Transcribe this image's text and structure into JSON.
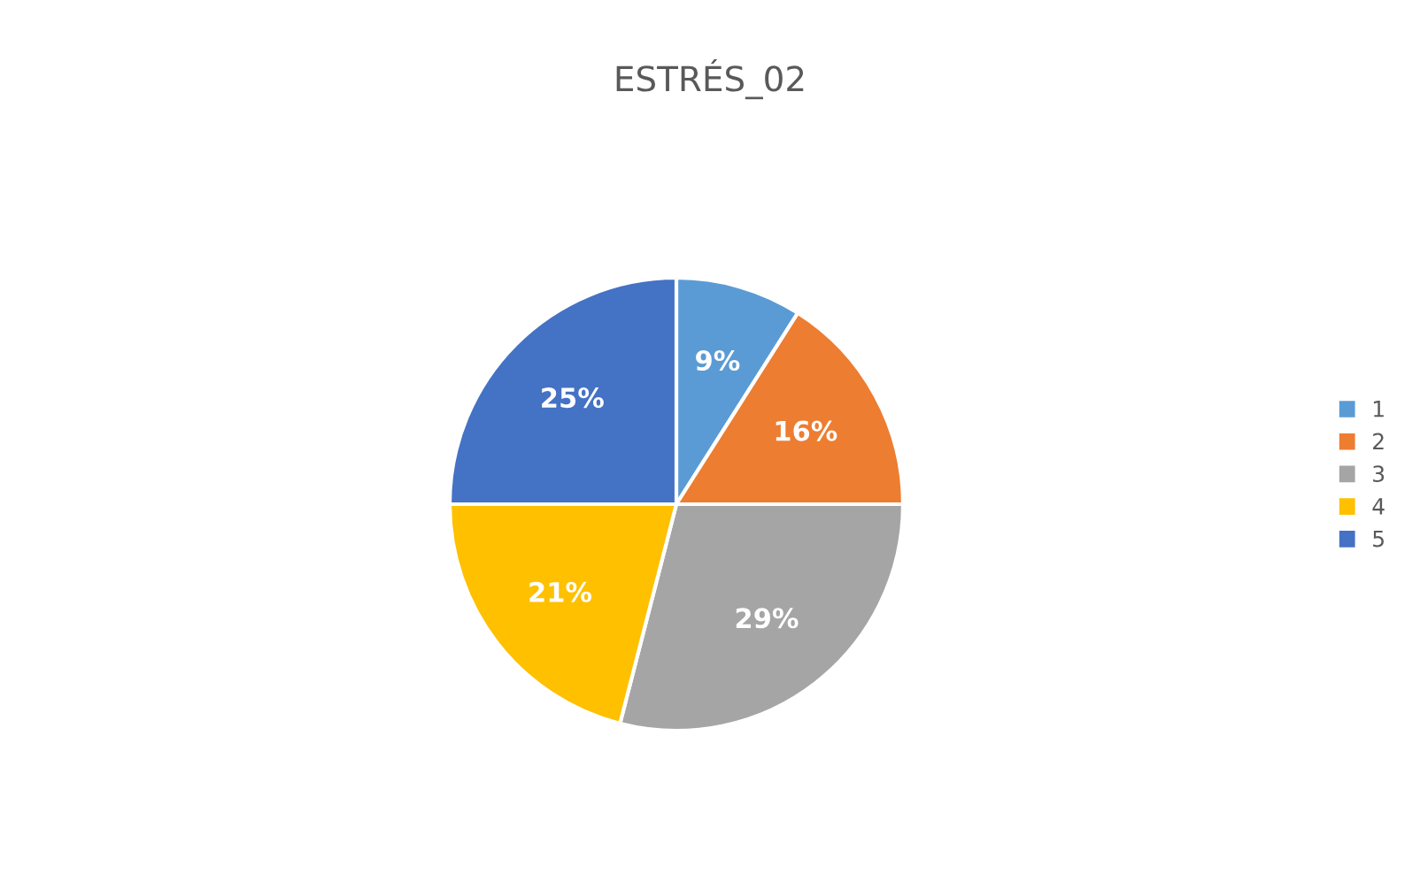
{
  "chart_data": {
    "type": "pie",
    "title": "ESTRÉS_02",
    "categories": [
      "1",
      "2",
      "3",
      "4",
      "5"
    ],
    "values": [
      9,
      16,
      29,
      21,
      25
    ],
    "colors": [
      "#5b9bd5",
      "#ed7d31",
      "#a5a5a5",
      "#ffc000",
      "#4472c4"
    ],
    "value_labels": [
      "9%",
      "16%",
      "29%",
      "21%",
      "25%"
    ],
    "legend": "right"
  }
}
